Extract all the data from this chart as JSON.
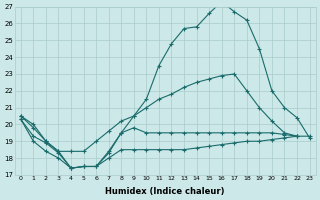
{
  "xlabel": "Humidex (Indice chaleur)",
  "xlim": [
    -0.5,
    23.5
  ],
  "ylim": [
    17,
    27
  ],
  "yticks": [
    17,
    18,
    19,
    20,
    21,
    22,
    23,
    24,
    25,
    26,
    27
  ],
  "xticks": [
    0,
    1,
    2,
    3,
    4,
    5,
    6,
    7,
    8,
    9,
    10,
    11,
    12,
    13,
    14,
    15,
    16,
    17,
    18,
    19,
    20,
    21,
    22,
    23
  ],
  "bg_color": "#cce8e8",
  "grid_color": "#aacccc",
  "line_color": "#1a6b6b",
  "line1_x": [
    0,
    1,
    2,
    3,
    4,
    5,
    6,
    7,
    8,
    9,
    10,
    11,
    12,
    13,
    14,
    15,
    16,
    17,
    18,
    19,
    20,
    21,
    22,
    23
  ],
  "line1_y": [
    20.5,
    20.0,
    19.0,
    18.4,
    17.4,
    17.5,
    17.5,
    18.4,
    19.5,
    20.5,
    21.5,
    23.5,
    24.8,
    25.7,
    25.8,
    26.6,
    27.3,
    26.7,
    26.2,
    24.5,
    22.0,
    21.0,
    20.4,
    19.2
  ],
  "line2_x": [
    0,
    1,
    2,
    3,
    4,
    5,
    6,
    7,
    8,
    9,
    10,
    11,
    12,
    13,
    14,
    15,
    16,
    17,
    18,
    19,
    20,
    21,
    22,
    23
  ],
  "line2_y": [
    20.5,
    19.8,
    19.0,
    18.4,
    18.4,
    18.4,
    19.0,
    19.6,
    20.2,
    20.5,
    21.0,
    21.5,
    21.8,
    22.2,
    22.5,
    22.7,
    22.9,
    23.0,
    22.0,
    21.0,
    20.2,
    19.5,
    19.3,
    null
  ],
  "line3_x": [
    0,
    1,
    2,
    3,
    4,
    5,
    6,
    7,
    8,
    9,
    10,
    11,
    12,
    13,
    14,
    15,
    16,
    17,
    18,
    19,
    20,
    21,
    22,
    23
  ],
  "line3_y": [
    20.3,
    19.3,
    18.9,
    18.3,
    17.4,
    17.5,
    17.5,
    18.3,
    19.5,
    19.8,
    19.5,
    19.5,
    19.5,
    19.5,
    19.5,
    19.5,
    19.5,
    19.5,
    19.5,
    19.5,
    19.5,
    19.4,
    19.3,
    null
  ],
  "line4_x": [
    0,
    1,
    2,
    3,
    4,
    5,
    6,
    7,
    8,
    9,
    10,
    11,
    12,
    13,
    14,
    15,
    16,
    17,
    18,
    19,
    20,
    21,
    22,
    23
  ],
  "line4_y": [
    20.3,
    19.0,
    18.4,
    18.0,
    17.4,
    17.5,
    17.5,
    18.0,
    18.5,
    18.5,
    18.5,
    18.5,
    18.5,
    18.5,
    18.6,
    18.7,
    18.8,
    18.9,
    19.0,
    19.0,
    19.1,
    19.2,
    19.3,
    19.3
  ]
}
